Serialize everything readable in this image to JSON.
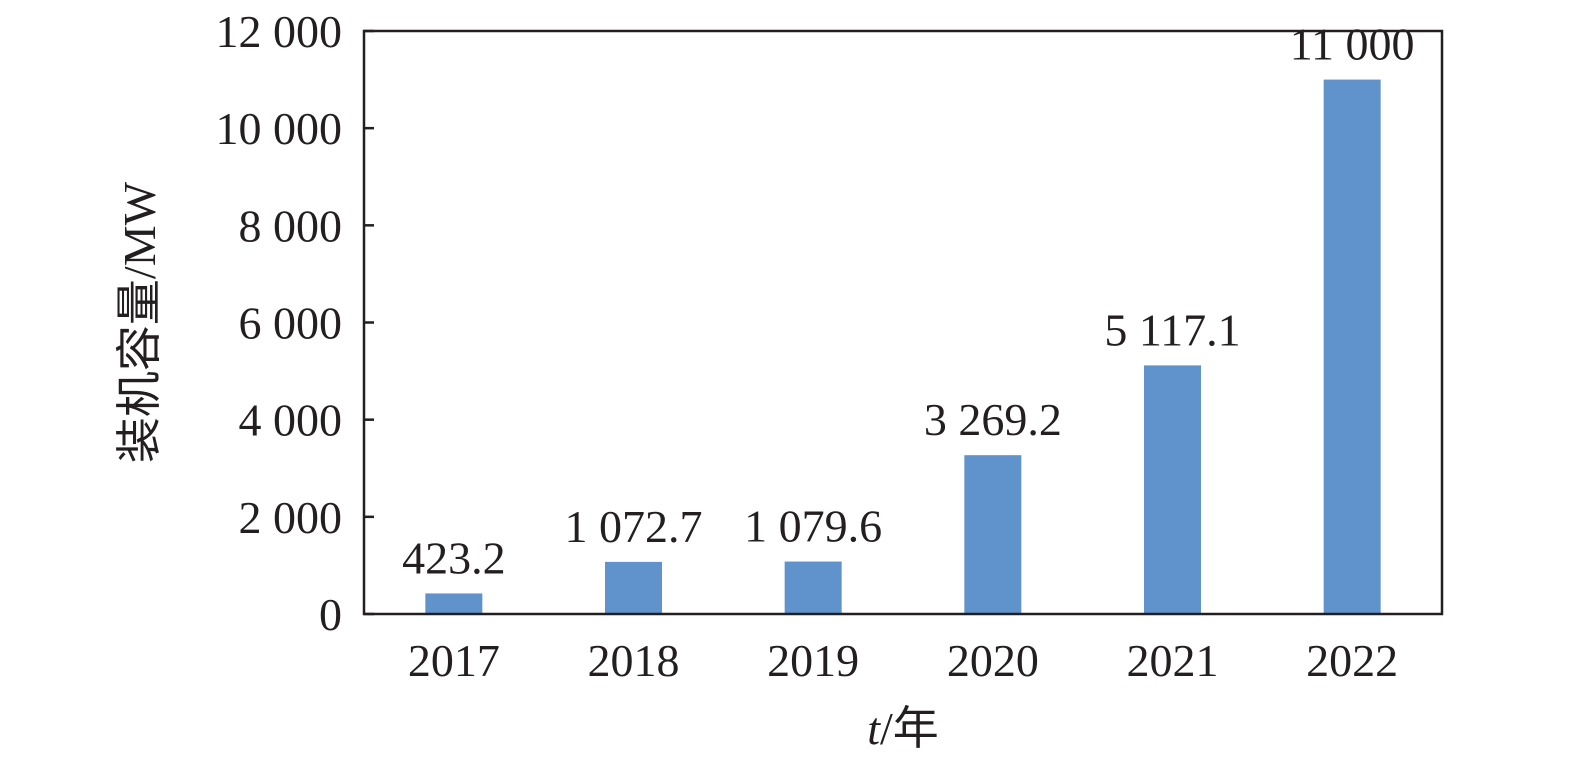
{
  "chart_data": {
    "type": "bar",
    "categories": [
      "2017",
      "2018",
      "2019",
      "2020",
      "2021",
      "2022"
    ],
    "values": [
      423.2,
      1072.7,
      1079.6,
      3269.2,
      5117.1,
      11000
    ],
    "data_labels": [
      "423.2",
      "1 072.7",
      "1 079.6",
      "3 269.2",
      "5 117.1",
      "11 000"
    ],
    "yticks": [
      0,
      2000,
      4000,
      6000,
      8000,
      10000,
      12000
    ],
    "ytick_labels": [
      "0",
      "2 000",
      "4 000",
      "6 000",
      "8 000",
      "10 000",
      "12 000"
    ],
    "ylim": [
      0,
      12000
    ],
    "xlabel_italic": "t",
    "xlabel_rest": "/年",
    "ylabel": "装机容量/MW",
    "grid": false,
    "bar_color": "#6093cb",
    "axis_color": "#231f20"
  }
}
